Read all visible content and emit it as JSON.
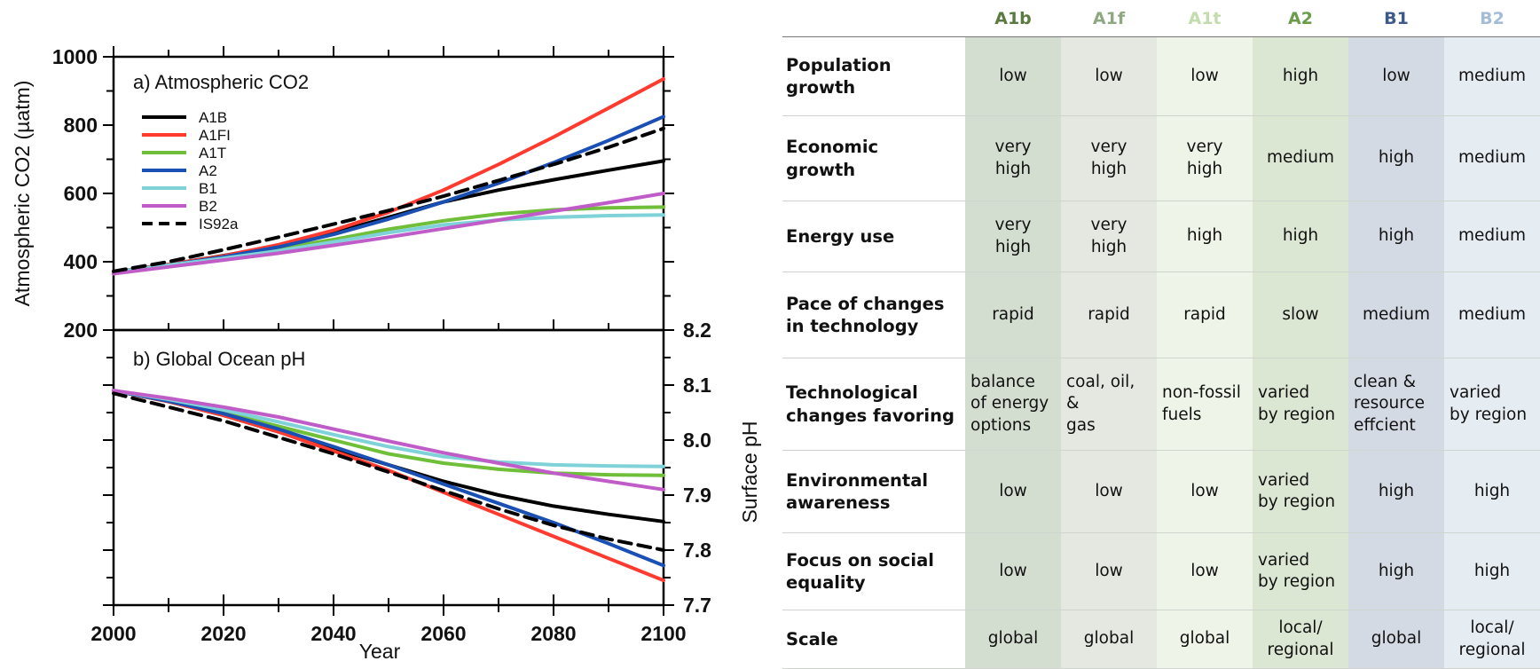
{
  "chart_data": [
    {
      "type": "line",
      "title": "a) Atmospheric CO2",
      "xlabel": "Year",
      "ylabel": "Atmospheric CO2 (µatm)",
      "xlim": [
        2000,
        2100
      ],
      "ylim": [
        200,
        1000
      ],
      "x_ticks": [
        2000,
        2020,
        2040,
        2060,
        2080,
        2100
      ],
      "y_ticks": [
        200,
        400,
        600,
        800,
        1000
      ],
      "legend": "top-left",
      "grid": false,
      "series": [
        {
          "name": "A1B",
          "color": "#000000",
          "dash": false,
          "x": [
            2000,
            2010,
            2020,
            2030,
            2040,
            2050,
            2060,
            2070,
            2080,
            2090,
            2100
          ],
          "y": [
            370,
            392,
            418,
            448,
            485,
            530,
            575,
            610,
            640,
            668,
            695
          ]
        },
        {
          "name": "A1FI",
          "color": "#ff3b30",
          "dash": false,
          "x": [
            2000,
            2010,
            2020,
            2030,
            2040,
            2050,
            2060,
            2070,
            2080,
            2090,
            2100
          ],
          "y": [
            370,
            392,
            417,
            450,
            492,
            545,
            610,
            685,
            765,
            850,
            935
          ]
        },
        {
          "name": "A1T",
          "color": "#6fbf3a",
          "dash": false,
          "x": [
            2000,
            2010,
            2020,
            2030,
            2040,
            2050,
            2060,
            2070,
            2080,
            2090,
            2100
          ],
          "y": [
            370,
            390,
            412,
            438,
            465,
            495,
            520,
            540,
            552,
            558,
            560
          ]
        },
        {
          "name": "A2",
          "color": "#1a4fb4",
          "dash": false,
          "x": [
            2000,
            2010,
            2020,
            2030,
            2040,
            2050,
            2060,
            2070,
            2080,
            2090,
            2100
          ],
          "y": [
            370,
            390,
            414,
            443,
            480,
            525,
            575,
            630,
            690,
            755,
            825
          ]
        },
        {
          "name": "B1",
          "color": "#7fd3d8",
          "dash": false,
          "x": [
            2000,
            2010,
            2020,
            2030,
            2040,
            2050,
            2060,
            2070,
            2080,
            2090,
            2100
          ],
          "y": [
            370,
            390,
            410,
            432,
            458,
            485,
            508,
            522,
            530,
            535,
            537
          ]
        },
        {
          "name": "B2",
          "color": "#c05cc8",
          "dash": false,
          "x": [
            2000,
            2010,
            2020,
            2030,
            2040,
            2050,
            2060,
            2070,
            2080,
            2090,
            2100
          ],
          "y": [
            365,
            385,
            405,
            425,
            448,
            472,
            497,
            522,
            548,
            573,
            600
          ]
        },
        {
          "name": "IS92a",
          "color": "#000000",
          "dash": true,
          "x": [
            2000,
            2010,
            2020,
            2030,
            2040,
            2050,
            2060,
            2070,
            2080,
            2090,
            2100
          ],
          "y": [
            372,
            400,
            435,
            472,
            510,
            550,
            592,
            638,
            685,
            735,
            790
          ]
        }
      ]
    },
    {
      "type": "line",
      "title": "b) Global Ocean pH",
      "xlabel": "Year",
      "ylabel": "Surface pH",
      "xlim": [
        2000,
        2100
      ],
      "ylim": [
        7.7,
        8.2
      ],
      "x_ticks": [
        2000,
        2020,
        2040,
        2060,
        2080,
        2100
      ],
      "y_ticks": [
        7.7,
        7.8,
        7.9,
        8.0,
        8.1,
        8.2
      ],
      "grid": false,
      "series": [
        {
          "name": "A1B",
          "color": "#000000",
          "dash": false,
          "x": [
            2000,
            2010,
            2020,
            2030,
            2040,
            2050,
            2060,
            2070,
            2080,
            2090,
            2100
          ],
          "y": [
            8.09,
            8.07,
            8.045,
            8.015,
            7.985,
            7.955,
            7.925,
            7.9,
            7.88,
            7.865,
            7.852
          ]
        },
        {
          "name": "A1FI",
          "color": "#ff3b30",
          "dash": false,
          "x": [
            2000,
            2010,
            2020,
            2030,
            2040,
            2050,
            2060,
            2070,
            2080,
            2090,
            2100
          ],
          "y": [
            8.09,
            8.07,
            8.045,
            8.015,
            7.98,
            7.945,
            7.905,
            7.865,
            7.825,
            7.785,
            7.745
          ]
        },
        {
          "name": "A1T",
          "color": "#6fbf3a",
          "dash": false,
          "x": [
            2000,
            2010,
            2020,
            2030,
            2040,
            2050,
            2060,
            2070,
            2080,
            2090,
            2100
          ],
          "y": [
            8.09,
            8.072,
            8.05,
            8.025,
            8.0,
            7.975,
            7.958,
            7.947,
            7.94,
            7.937,
            7.936
          ]
        },
        {
          "name": "A2",
          "color": "#1a4fb4",
          "dash": false,
          "x": [
            2000,
            2010,
            2020,
            2030,
            2040,
            2050,
            2060,
            2070,
            2080,
            2090,
            2100
          ],
          "y": [
            8.09,
            8.071,
            8.048,
            8.02,
            7.988,
            7.955,
            7.92,
            7.885,
            7.85,
            7.812,
            7.772
          ]
        },
        {
          "name": "B1",
          "color": "#7fd3d8",
          "dash": false,
          "x": [
            2000,
            2010,
            2020,
            2030,
            2040,
            2050,
            2060,
            2070,
            2080,
            2090,
            2100
          ],
          "y": [
            8.09,
            8.074,
            8.055,
            8.033,
            8.01,
            7.988,
            7.97,
            7.96,
            7.955,
            7.953,
            7.952
          ]
        },
        {
          "name": "B2",
          "color": "#c05cc8",
          "dash": false,
          "x": [
            2000,
            2010,
            2020,
            2030,
            2040,
            2050,
            2060,
            2070,
            2080,
            2090,
            2100
          ],
          "y": [
            8.09,
            8.076,
            8.06,
            8.042,
            8.02,
            7.998,
            7.977,
            7.958,
            7.94,
            7.925,
            7.91
          ]
        },
        {
          "name": "IS92a",
          "color": "#000000",
          "dash": true,
          "x": [
            2000,
            2010,
            2020,
            2030,
            2040,
            2050,
            2060,
            2070,
            2080,
            2090,
            2100
          ],
          "y": [
            8.085,
            8.06,
            8.035,
            8.005,
            7.975,
            7.942,
            7.908,
            7.875,
            7.845,
            7.82,
            7.8
          ]
        }
      ]
    }
  ],
  "table": {
    "columns": [
      {
        "label": "A1b",
        "color": "#5a7a42"
      },
      {
        "label": "A1f",
        "color": "#8ea882"
      },
      {
        "label": "A1t",
        "color": "#c3dcae"
      },
      {
        "label": "A2",
        "color": "#6a9c4a"
      },
      {
        "label": "B1",
        "color": "#3e5a8a"
      },
      {
        "label": "B2",
        "color": "#a4bcd6"
      }
    ],
    "rows": [
      {
        "label": [
          "Population",
          "growth"
        ],
        "cells": [
          [
            "low"
          ],
          [
            "low"
          ],
          [
            "low"
          ],
          [
            "high"
          ],
          [
            "low"
          ],
          [
            "medium"
          ]
        ]
      },
      {
        "label": [
          "Economic",
          "growth"
        ],
        "cells": [
          [
            "very",
            "high"
          ],
          [
            "very",
            "high"
          ],
          [
            "very",
            "high"
          ],
          [
            "medium"
          ],
          [
            "high"
          ],
          [
            "medium"
          ]
        ]
      },
      {
        "label": [
          "Energy use"
        ],
        "cells": [
          [
            "very",
            "high"
          ],
          [
            "very",
            "high"
          ],
          [
            "high"
          ],
          [
            "high"
          ],
          [
            "high"
          ],
          [
            "medium"
          ]
        ]
      },
      {
        "label": [
          "Pace of changes",
          "in technology"
        ],
        "cells": [
          [
            "rapid"
          ],
          [
            "rapid"
          ],
          [
            "rapid"
          ],
          [
            "slow"
          ],
          [
            "medium"
          ],
          [
            "medium"
          ]
        ]
      },
      {
        "label": [
          "Technological",
          "changes favoring"
        ],
        "cells": [
          [
            "balance",
            "of energy",
            "options"
          ],
          [
            "coal, oil, &",
            "gas"
          ],
          [
            "non-fossil",
            "fuels"
          ],
          [
            "varied",
            "by region"
          ],
          [
            "clean &",
            "resource",
            "effcient"
          ],
          [
            "varied",
            "by region"
          ]
        ]
      },
      {
        "label": [
          "Environmental",
          "awareness"
        ],
        "cells": [
          [
            "low"
          ],
          [
            "low"
          ],
          [
            "low"
          ],
          [
            "varied",
            "by region"
          ],
          [
            "high"
          ],
          [
            "high"
          ]
        ]
      },
      {
        "label": [
          "Focus on social",
          "equality"
        ],
        "cells": [
          [
            "low"
          ],
          [
            "low"
          ],
          [
            "low"
          ],
          [
            "varied",
            "by region"
          ],
          [
            "high"
          ],
          [
            "high"
          ]
        ]
      },
      {
        "label": [
          "Scale"
        ],
        "cells": [
          [
            "global"
          ],
          [
            "global"
          ],
          [
            "global"
          ],
          [
            "local/",
            "regional"
          ],
          [
            "global"
          ],
          [
            "local/",
            "regional"
          ]
        ]
      }
    ]
  }
}
